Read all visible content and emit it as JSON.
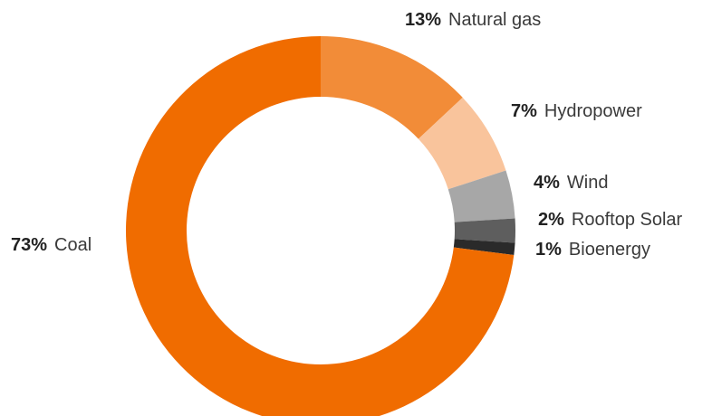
{
  "chart_data": {
    "type": "pie",
    "variant": "donut",
    "title": "",
    "slices": [
      {
        "label": "Natural gas",
        "value": 13,
        "pct_label": "13%",
        "color": "#f28c38"
      },
      {
        "label": "Hydropower",
        "value": 7,
        "pct_label": "7%",
        "color": "#f9c49c"
      },
      {
        "label": "Wind",
        "value": 4,
        "pct_label": "4%",
        "color": "#a7a7a7"
      },
      {
        "label": "Rooftop Solar",
        "value": 2,
        "pct_label": "2%",
        "color": "#5e5e5e"
      },
      {
        "label": "Bioenergy",
        "value": 1,
        "pct_label": "1%",
        "color": "#2a2a2a"
      },
      {
        "label": "Coal",
        "value": 73,
        "pct_label": "73%",
        "color": "#f06c00"
      }
    ],
    "start_angle_deg": 0,
    "direction": "clockwise",
    "legend": "labels beside slices"
  }
}
